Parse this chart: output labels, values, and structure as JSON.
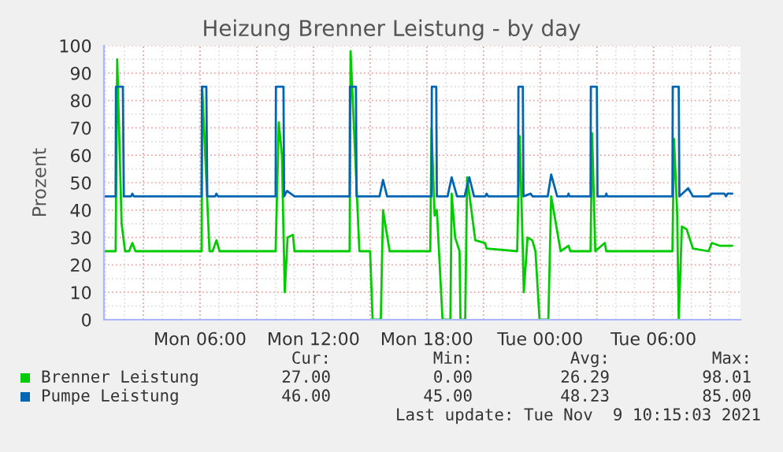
{
  "chart_data": {
    "type": "line",
    "title": "Heizung Brenner Leistung - by day",
    "ylabel": "Prozent",
    "xlim": [
      "2021-11-08T00:55",
      "2021-11-09T10:36"
    ],
    "xticks": [
      {
        "value": "2021-11-08T03:00",
        "label": null
      },
      {
        "value": "2021-11-08T06:00",
        "label": "Mon 06:00"
      },
      {
        "value": "2021-11-08T09:00",
        "label": null
      },
      {
        "value": "2021-11-08T12:00",
        "label": "Mon 12:00"
      },
      {
        "value": "2021-11-08T15:00",
        "label": null
      },
      {
        "value": "2021-11-08T18:00",
        "label": "Mon 18:00"
      },
      {
        "value": "2021-11-08T21:00",
        "label": null
      },
      {
        "value": "2021-11-09T00:00",
        "label": "Tue 00:00"
      },
      {
        "value": "2021-11-09T03:00",
        "label": null
      },
      {
        "value": "2021-11-09T06:00",
        "label": "Tue 06:00"
      },
      {
        "value": "2021-11-09T09:00",
        "label": null
      }
    ],
    "ylim": [
      0,
      100
    ],
    "yticks": [
      0,
      10,
      20,
      30,
      40,
      50,
      60,
      70,
      80,
      90,
      100
    ],
    "grid": true,
    "legend": "bottom",
    "marker": "none",
    "line_style": "solid",
    "series": [
      {
        "name": "Brenner Leistung",
        "color": "#00cc00",
        "x": [
          "2021-11-08T00:55",
          "2021-11-08T01:32",
          "2021-11-08T01:37",
          "2021-11-08T01:51",
          "2021-11-08T02:02",
          "2021-11-08T02:15",
          "2021-11-08T02:25",
          "2021-11-08T02:35",
          "2021-11-08T06:05",
          "2021-11-08T06:07",
          "2021-11-08T06:30",
          "2021-11-08T06:40",
          "2021-11-08T06:52",
          "2021-11-08T07:02",
          "2021-11-08T10:00",
          "2021-11-08T10:10",
          "2021-11-08T10:20",
          "2021-11-08T10:29",
          "2021-11-08T10:38",
          "2021-11-08T10:55",
          "2021-11-08T11:00",
          "2021-11-08T13:55",
          "2021-11-08T13:58",
          "2021-11-08T14:26",
          "2021-11-08T15:00",
          "2021-11-08T15:08",
          "2021-11-08T15:34",
          "2021-11-08T15:41",
          "2021-11-08T16:02",
          "2021-11-08T18:11",
          "2021-11-08T18:15",
          "2021-11-08T18:25",
          "2021-11-08T18:32",
          "2021-11-08T18:50",
          "2021-11-08T19:15",
          "2021-11-08T19:19",
          "2021-11-08T19:30",
          "2021-11-08T19:44",
          "2021-11-08T19:47",
          "2021-11-08T20:02",
          "2021-11-08T20:08",
          "2021-11-08T20:34",
          "2021-11-08T21:05",
          "2021-11-08T21:10",
          "2021-11-08T22:47",
          "2021-11-08T22:55",
          "2021-11-08T23:05",
          "2021-11-08T23:08",
          "2021-11-08T23:20",
          "2021-11-08T23:35",
          "2021-11-08T23:45",
          "2021-11-08T23:58",
          "2021-11-09T00:26",
          "2021-11-09T00:35",
          "2021-11-09T01:05",
          "2021-11-09T01:30",
          "2021-11-09T01:36",
          "2021-11-09T02:40",
          "2021-11-09T02:45",
          "2021-11-09T02:55",
          "2021-11-09T03:25",
          "2021-11-09T03:30",
          "2021-11-09T07:00",
          "2021-11-09T07:05",
          "2021-11-09T07:15",
          "2021-11-09T07:20",
          "2021-11-09T07:30",
          "2021-11-09T07:45",
          "2021-11-09T08:05",
          "2021-11-09T08:55",
          "2021-11-09T09:05",
          "2021-11-09T09:30",
          "2021-11-09T10:10"
        ],
        "values": [
          25,
          25,
          95,
          35,
          25,
          25,
          28,
          25,
          25,
          85,
          25,
          25,
          29,
          25,
          25,
          72,
          60,
          10,
          30,
          31,
          25,
          25,
          98,
          25,
          25,
          0,
          0,
          40,
          25,
          25,
          70,
          38,
          40,
          0,
          0,
          46,
          30,
          25,
          0,
          0,
          52,
          29,
          28,
          26,
          25,
          67,
          25,
          10,
          30,
          29,
          25,
          0,
          0,
          45,
          25,
          27,
          25,
          25,
          68,
          25,
          28,
          25,
          25,
          66,
          39,
          0,
          34,
          33,
          26,
          25,
          28,
          27,
          27
        ]
      },
      {
        "name": "Pumpe Leistung",
        "color": "#0066b3",
        "x": [
          "2021-11-08T00:55",
          "2021-11-08T01:32",
          "2021-11-08T01:33",
          "2021-11-08T01:55",
          "2021-11-08T01:58",
          "2021-11-08T02:21",
          "2021-11-08T02:25",
          "2021-11-08T02:30",
          "2021-11-08T06:05",
          "2021-11-08T06:06",
          "2021-11-08T06:20",
          "2021-11-08T06:23",
          "2021-11-08T06:48",
          "2021-11-08T06:52",
          "2021-11-08T06:57",
          "2021-11-08T10:00",
          "2021-11-08T10:01",
          "2021-11-08T10:25",
          "2021-11-08T10:27",
          "2021-11-08T10:36",
          "2021-11-08T10:48",
          "2021-11-08T11:00",
          "2021-11-08T13:55",
          "2021-11-08T13:56",
          "2021-11-08T14:15",
          "2021-11-08T14:17",
          "2021-11-08T15:30",
          "2021-11-08T15:41",
          "2021-11-08T15:54",
          "2021-11-08T18:15",
          "2021-11-08T18:16",
          "2021-11-08T18:30",
          "2021-11-08T18:32",
          "2021-11-08T19:06",
          "2021-11-08T19:19",
          "2021-11-08T19:36",
          "2021-11-08T20:00",
          "2021-11-08T20:15",
          "2021-11-08T20:30",
          "2021-11-08T21:06",
          "2021-11-08T21:10",
          "2021-11-08T21:15",
          "2021-11-08T22:50",
          "2021-11-08T22:51",
          "2021-11-08T23:05",
          "2021-11-08T23:07",
          "2021-11-08T23:30",
          "2021-11-08T23:36",
          "2021-11-09T00:24",
          "2021-11-09T00:35",
          "2021-11-09T00:54",
          "2021-11-09T01:27",
          "2021-11-09T01:30",
          "2021-11-09T01:33",
          "2021-11-09T02:40",
          "2021-11-09T02:41",
          "2021-11-09T03:00",
          "2021-11-09T03:02",
          "2021-11-09T03:27",
          "2021-11-09T03:30",
          "2021-11-09T03:33",
          "2021-11-09T07:00",
          "2021-11-09T07:01",
          "2021-11-09T07:20",
          "2021-11-09T07:22",
          "2021-11-09T07:50",
          "2021-11-09T08:05",
          "2021-11-09T08:55",
          "2021-11-09T09:05",
          "2021-11-09T09:45",
          "2021-11-09T09:50",
          "2021-11-09T09:55",
          "2021-11-09T10:10"
        ],
        "values": [
          45,
          45,
          85,
          85,
          45,
          45,
          46,
          45,
          45,
          85,
          85,
          45,
          45,
          46,
          45,
          45,
          85,
          85,
          45,
          47,
          46,
          45,
          45,
          85,
          85,
          45,
          45,
          51,
          45,
          45,
          85,
          85,
          45,
          45,
          52,
          45,
          45,
          52,
          45,
          45,
          46,
          45,
          45,
          85,
          85,
          45,
          46,
          45,
          45,
          53,
          45,
          45,
          46,
          45,
          45,
          85,
          85,
          45,
          45,
          46,
          45,
          45,
          85,
          85,
          45,
          48,
          45,
          45,
          46,
          46,
          45,
          46,
          46
        ]
      }
    ],
    "annotations": [
      "Cur:",
      "Min:",
      "Avg:",
      "Max:",
      "27.00",
      "0.00",
      "26.29",
      "98.01",
      "46.00",
      "45.00",
      "48.23",
      "85.00",
      "Last update: Tue Nov  9 10:15:03 2021"
    ]
  }
}
